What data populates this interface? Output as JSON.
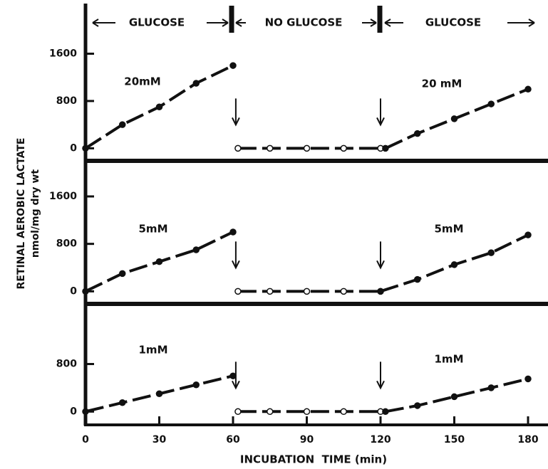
{
  "phases": [
    "GLUCOSE",
    "NO GLUCOSE",
    "GLUCOSE"
  ],
  "y_label": [
    "RETINAL AEROBIC LACTATE",
    "nmol/mg dry wt"
  ],
  "chart_data": [
    {
      "type": "line",
      "annotations": [
        "20mM",
        "20 mM"
      ],
      "color": "#111",
      "ylim": [
        -200,
        2400
      ],
      "yticks": [
        0,
        800,
        1600
      ],
      "series": [
        {
          "marker": "filled",
          "x": [
            0,
            15,
            30,
            45,
            60
          ],
          "values": [
            0,
            400,
            700,
            1100,
            1400
          ]
        },
        {
          "marker": "open",
          "x": [
            62,
            75,
            90,
            105,
            120
          ],
          "values": [
            0,
            0,
            0,
            0,
            0
          ]
        },
        {
          "marker": "filled",
          "x": [
            122,
            135,
            150,
            165,
            180
          ],
          "values": [
            0,
            250,
            500,
            750,
            1000
          ]
        }
      ]
    },
    {
      "type": "line",
      "annotations": [
        "5mM",
        "5mM"
      ],
      "color": "#111",
      "ylim": [
        -200,
        2200
      ],
      "yticks": [
        0,
        800,
        1600
      ],
      "series": [
        {
          "marker": "filled",
          "x": [
            0,
            15,
            30,
            45,
            60
          ],
          "values": [
            0,
            300,
            500,
            700,
            1000
          ]
        },
        {
          "marker": "open",
          "x": [
            62,
            75,
            90,
            105,
            120
          ],
          "values": [
            0,
            0,
            0,
            0,
            0
          ]
        },
        {
          "marker": "filled",
          "x": [
            120,
            135,
            150,
            165,
            180
          ],
          "values": [
            0,
            200,
            450,
            650,
            950
          ]
        }
      ]
    },
    {
      "type": "line",
      "annotations": [
        "1mM",
        "1mM"
      ],
      "color": "#111",
      "ylim": [
        -200,
        1800
      ],
      "yticks": [
        0,
        800
      ],
      "xlim": [
        0,
        180
      ],
      "xticks": [
        0,
        30,
        60,
        90,
        120,
        150,
        180
      ],
      "xlabel": "INCUBATION  TIME (min)",
      "series": [
        {
          "marker": "filled",
          "x": [
            0,
            15,
            30,
            45,
            60
          ],
          "values": [
            0,
            150,
            300,
            450,
            600
          ]
        },
        {
          "marker": "open",
          "x": [
            62,
            75,
            90,
            105,
            120
          ],
          "values": [
            0,
            0,
            0,
            0,
            0
          ]
        },
        {
          "marker": "filled",
          "x": [
            122,
            135,
            150,
            165,
            180
          ],
          "values": [
            0,
            100,
            250,
            400,
            550
          ]
        }
      ]
    }
  ]
}
